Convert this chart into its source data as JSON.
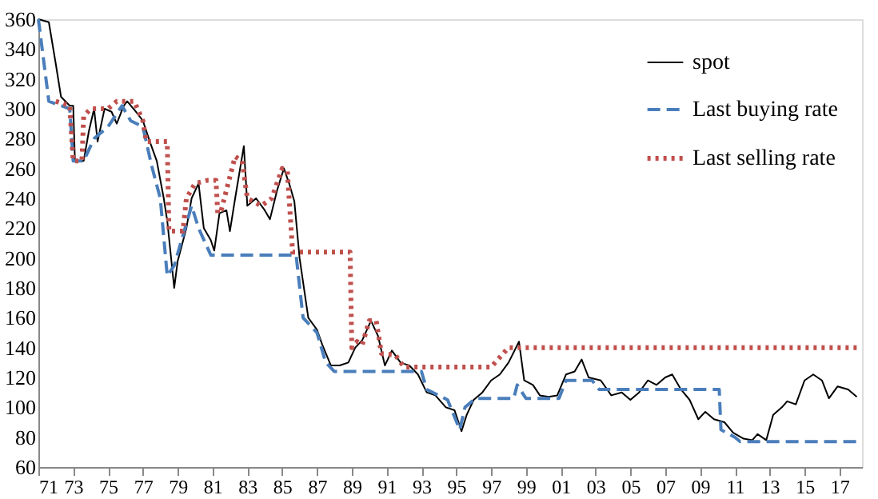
{
  "chart_data": {
    "type": "line",
    "xlim": [
      1971,
      2018.3
    ],
    "ylim": [
      60,
      360
    ],
    "xticks": [
      {
        "value": 1971,
        "label": "71"
      },
      {
        "value": 1973,
        "label": "73"
      },
      {
        "value": 1975,
        "label": "75"
      },
      {
        "value": 1977,
        "label": "77"
      },
      {
        "value": 1979,
        "label": "79"
      },
      {
        "value": 1981,
        "label": "81"
      },
      {
        "value": 1983,
        "label": "83"
      },
      {
        "value": 1985,
        "label": "85"
      },
      {
        "value": 1987,
        "label": "87"
      },
      {
        "value": 1989,
        "label": "89"
      },
      {
        "value": 1991,
        "label": "91"
      },
      {
        "value": 1993,
        "label": "93"
      },
      {
        "value": 1995,
        "label": "95"
      },
      {
        "value": 1997,
        "label": "97"
      },
      {
        "value": 1999,
        "label": "99"
      },
      {
        "value": 2001,
        "label": "01"
      },
      {
        "value": 2003,
        "label": "03"
      },
      {
        "value": 2005,
        "label": "05"
      },
      {
        "value": 2007,
        "label": "07"
      },
      {
        "value": 2009,
        "label": "09"
      },
      {
        "value": 2011,
        "label": "11"
      },
      {
        "value": 2013,
        "label": "13"
      },
      {
        "value": 2015,
        "label": "15"
      },
      {
        "value": 2017,
        "label": "17"
      }
    ],
    "yticks": [
      60,
      80,
      100,
      120,
      140,
      160,
      180,
      200,
      220,
      240,
      260,
      280,
      300,
      320,
      340,
      360
    ],
    "grid": false,
    "legend": "top right",
    "marker": "none",
    "series": [
      {
        "name": "spot",
        "color": "#000000",
        "line_style": "solid",
        "x": [
          1971.0,
          1971.6,
          1972.0,
          1972.3,
          1972.8,
          1973.0,
          1973.1,
          1973.6,
          1973.9,
          1974.2,
          1974.4,
          1974.8,
          1975.2,
          1975.5,
          1975.9,
          1976.1,
          1976.6,
          1977.0,
          1977.4,
          1977.8,
          1978.2,
          1978.4,
          1978.8,
          1979.0,
          1979.5,
          1979.8,
          1980.2,
          1980.5,
          1980.9,
          1981.1,
          1981.4,
          1981.8,
          1982.0,
          1982.3,
          1982.8,
          1983.0,
          1983.5,
          1984.0,
          1984.3,
          1984.7,
          1985.1,
          1985.4,
          1985.7,
          1986.0,
          1986.5,
          1987.0,
          1987.3,
          1987.8,
          1988.3,
          1988.8,
          1989.2,
          1989.6,
          1990.1,
          1990.5,
          1990.9,
          1991.3,
          1991.8,
          1992.3,
          1992.8,
          1993.3,
          1993.8,
          1994.4,
          1994.9,
          1995.3,
          1995.6,
          1996.0,
          1996.5,
          1997.0,
          1997.5,
          1998.0,
          1998.6,
          1998.9,
          1999.4,
          1999.8,
          2000.3,
          2000.8,
          2001.3,
          2001.8,
          2002.2,
          2002.6,
          2003.3,
          2003.9,
          2004.5,
          2005.0,
          2005.5,
          2006.0,
          2006.5,
          2007.0,
          2007.4,
          2007.9,
          2008.4,
          2008.9,
          2009.3,
          2009.8,
          2010.4,
          2010.9,
          2011.5,
          2012.0,
          2012.3,
          2012.8,
          2013.2,
          2013.7,
          2014.0,
          2014.5,
          2015.0,
          2015.5,
          2016.0,
          2016.4,
          2016.9,
          2017.5,
          2018.0
        ],
        "values": [
          360,
          358,
          330,
          308,
          302,
          302,
          265,
          265,
          285,
          300,
          278,
          300,
          298,
          290,
          302,
          305,
          298,
          292,
          278,
          265,
          240,
          225,
          180,
          198,
          220,
          240,
          250,
          220,
          212,
          205,
          230,
          232,
          218,
          240,
          275,
          235,
          240,
          232,
          226,
          245,
          260,
          250,
          238,
          200,
          160,
          152,
          142,
          128,
          128,
          130,
          140,
          145,
          158,
          148,
          128,
          138,
          130,
          128,
          122,
          110,
          108,
          100,
          98,
          84,
          95,
          105,
          110,
          118,
          122,
          130,
          144,
          118,
          115,
          108,
          107,
          108,
          122,
          124,
          132,
          120,
          118,
          108,
          110,
          105,
          110,
          118,
          115,
          120,
          122,
          112,
          105,
          92,
          97,
          92,
          90,
          83,
          79,
          78,
          82,
          78,
          95,
          100,
          104,
          102,
          118,
          122,
          118,
          106,
          114,
          112,
          107
        ]
      },
      {
        "name": "Last buying rate",
        "color": "#4a7ebb",
        "line_style": "dashed",
        "x": [
          1971.0,
          1971.6,
          1972.8,
          1973.0,
          1973.6,
          1974.2,
          1975.0,
          1975.8,
          1976.3,
          1977.0,
          1977.5,
          1978.0,
          1978.4,
          1978.8,
          1979.3,
          1979.8,
          1980.2,
          1980.9,
          1985.8,
          1986.2,
          1987.0,
          1987.5,
          1988.0,
          1993.0,
          1993.3,
          1994.5,
          1995.2,
          1995.5,
          1996.1,
          1998.3,
          1998.5,
          1999.0,
          2000.9,
          2001.3,
          2002.8,
          2003.2,
          2004.0,
          2010.1,
          2010.2,
          2011.0,
          2011.3,
          2018.0
        ],
        "values": [
          360,
          305,
          300,
          265,
          265,
          280,
          288,
          302,
          292,
          288,
          262,
          240,
          188,
          195,
          215,
          235,
          220,
          202,
          202,
          160,
          150,
          130,
          124,
          124,
          112,
          105,
          85,
          100,
          106,
          106,
          115,
          106,
          106,
          118,
          118,
          112,
          112,
          112,
          85,
          80,
          77,
          77
        ]
      },
      {
        "name": "Last selling rate",
        "color": "#c0504d",
        "line_style": "dotted",
        "x": [
          1972.0,
          1972.8,
          1973.0,
          1973.5,
          1973.6,
          1974.0,
          1975.0,
          1975.5,
          1976.5,
          1977.0,
          1977.2,
          1978.4,
          1978.5,
          1979.3,
          1979.5,
          1980.0,
          1980.7,
          1981.2,
          1981.3,
          1981.5,
          1982.3,
          1982.7,
          1983.0,
          1983.8,
          1984.4,
          1985.0,
          1985.3,
          1985.6,
          1988.9,
          1989.0,
          1989.3,
          1989.6,
          1990.0,
          1990.4,
          1990.7,
          1991.5,
          1992.0,
          1997.0,
          1998.0,
          2018.0
        ],
        "values": [
          305,
          302,
          265,
          265,
          295,
          300,
          300,
          305,
          305,
          292,
          278,
          278,
          218,
          218,
          240,
          250,
          252,
          252,
          230,
          232,
          268,
          265,
          240,
          235,
          240,
          260,
          258,
          204,
          204,
          140,
          144,
          142,
          158,
          158,
          136,
          135,
          127,
          127,
          140,
          140
        ]
      }
    ]
  }
}
